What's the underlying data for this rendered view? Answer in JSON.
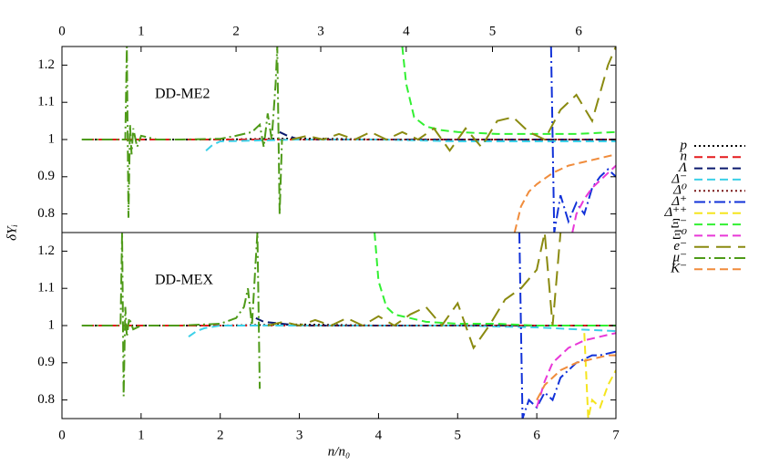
{
  "chart_data": [
    {
      "type": "line",
      "annotation": "DD-ME2",
      "ylabel": "δYᵢ",
      "ylim": [
        0.75,
        1.25
      ],
      "yticks": [
        0.8,
        0.9,
        1,
        1.1,
        1.2
      ],
      "xlim": [
        0,
        7
      ],
      "x2ticks": [
        {
          "value": 0,
          "label": "0"
        },
        {
          "value": 1.0,
          "label": "1"
        },
        {
          "value": 2.2,
          "label": "2"
        },
        {
          "value": 3.27,
          "label": "3"
        },
        {
          "value": 4.35,
          "label": "4"
        },
        {
          "value": 5.44,
          "label": "5"
        },
        {
          "value": 6.53,
          "label": "6"
        }
      ],
      "series": [
        {
          "name": "p",
          "color": "#000000",
          "dash": "dotted",
          "x": [
            0.3,
            1,
            2,
            3,
            4,
            5,
            6,
            7
          ],
          "values": [
            1,
            1,
            1,
            1.003,
            1,
            1,
            1,
            1
          ]
        },
        {
          "name": "n",
          "color": "#e41a1c",
          "dash": "dashed",
          "x": [
            0.3,
            2,
            4,
            6,
            7
          ],
          "values": [
            1,
            1,
            1,
            1,
            1
          ]
        },
        {
          "name": "Λ",
          "color": "#0b1a6e",
          "dash": "dashed",
          "x": [
            2.75,
            2.85,
            3,
            4,
            5,
            6,
            7
          ],
          "values": [
            1.02,
            1.01,
            1,
            1,
            1,
            1,
            1
          ]
        },
        {
          "name": "Δ⁻",
          "color": "#3cd0e8",
          "dash": "dashed",
          "x": [
            1.82,
            1.9,
            2,
            3,
            4,
            5,
            6,
            7
          ],
          "values": [
            0.97,
            0.985,
            0.995,
            1,
            1,
            0.995,
            0.995,
            0.995
          ]
        },
        {
          "name": "Δ⁰",
          "color": "#7a1a1a",
          "dash": "dotted",
          "x": [
            3,
            5,
            7
          ],
          "values": [
            1,
            1,
            1
          ]
        },
        {
          "name": "Δ⁺",
          "color": "#1232d8",
          "dash": "dashdot",
          "x": [
            6.18,
            6.22,
            6.3,
            6.4,
            6.5,
            6.6,
            6.7,
            6.8,
            6.9,
            7
          ],
          "values": [
            1.25,
            0.75,
            0.85,
            0.78,
            0.83,
            0.8,
            0.87,
            0.9,
            0.92,
            0.9
          ]
        },
        {
          "name": "Ξ⁻",
          "color": "#32f032",
          "dash": "dashed",
          "x": [
            4.3,
            4.35,
            4.45,
            4.6,
            4.8,
            5,
            5.5,
            6,
            6.5,
            7
          ],
          "values": [
            1.25,
            1.15,
            1.06,
            1.035,
            1.025,
            1.02,
            1.015,
            1.015,
            1.015,
            1.02
          ]
        },
        {
          "name": "Ξ⁰",
          "color": "#e838d8",
          "dash": "dashed",
          "x": [
            6.45,
            6.5,
            6.6,
            6.7,
            6.8,
            6.9,
            7
          ],
          "values": [
            0.75,
            0.8,
            0.84,
            0.87,
            0.89,
            0.91,
            0.93
          ]
        },
        {
          "name": "e⁻",
          "color": "#8a8a10",
          "dash": "long",
          "x": [
            2.9,
            3.1,
            3.3,
            3.5,
            3.7,
            3.9,
            4.1,
            4.3,
            4.5,
            4.7,
            4.9,
            5.1,
            5.3,
            5.5,
            5.7,
            5.9,
            6.1,
            6.3,
            6.5,
            6.7,
            6.9,
            7
          ],
          "values": [
            1,
            1.01,
            1,
            1.015,
            1,
            1.02,
            1,
            1.02,
            1,
            1.03,
            0.97,
            1.03,
            0.98,
            1.05,
            1.06,
            1.02,
            1.0,
            1.08,
            1.12,
            1.05,
            1.2,
            1.25
          ]
        },
        {
          "name": "μ⁻",
          "color": "#4e9a18",
          "dash": "dashdot",
          "x": [
            0.25,
            0.5,
            0.8,
            0.82,
            0.84,
            0.86,
            0.88,
            0.9,
            0.95,
            1.0,
            1.2,
            1.5,
            2.0,
            2.2,
            2.4,
            2.5,
            2.55,
            2.6,
            2.65,
            2.7,
            2.72,
            2.75,
            2.78
          ],
          "values": [
            1,
            1,
            1,
            1.25,
            0.79,
            1.04,
            0.96,
            1.03,
            0.98,
            1.01,
            1,
            1,
            1.002,
            1.01,
            1.02,
            1.04,
            0.98,
            1.07,
            1.0,
            1.15,
            1.25,
            0.8,
            1.0
          ]
        },
        {
          "name": "K⁻",
          "color": "#f08c3c",
          "dash": "dashed",
          "x": [
            5.72,
            5.8,
            5.9,
            6.0,
            6.2,
            6.4,
            6.6,
            6.8,
            7
          ],
          "values": [
            0.75,
            0.82,
            0.86,
            0.88,
            0.91,
            0.93,
            0.94,
            0.95,
            0.96
          ]
        }
      ]
    },
    {
      "type": "line",
      "annotation": "DD-MEX",
      "xlabel": "n/n₀",
      "ylim": [
        0.75,
        1.25
      ],
      "yticks": [
        0.8,
        0.9,
        1,
        1.1,
        1.2
      ],
      "xlim": [
        0,
        7
      ],
      "xticks": [
        0,
        1,
        2,
        3,
        4,
        5,
        6,
        7
      ],
      "series": [
        {
          "name": "p",
          "color": "#000000",
          "dash": "dotted",
          "x": [
            0.3,
            1,
            2,
            3,
            4,
            5,
            6,
            7
          ],
          "values": [
            1,
            1,
            1,
            1.003,
            1,
            1,
            1,
            1
          ]
        },
        {
          "name": "n",
          "color": "#e41a1c",
          "dash": "dashed",
          "x": [
            0.3,
            2,
            4,
            6,
            7
          ],
          "values": [
            1,
            1,
            1,
            1,
            1
          ]
        },
        {
          "name": "Λ",
          "color": "#0b1a6e",
          "dash": "dashed",
          "x": [
            2.45,
            2.55,
            3,
            4,
            5,
            6,
            7
          ],
          "values": [
            1.02,
            1.01,
            1,
            1,
            1,
            1,
            1
          ]
        },
        {
          "name": "Δ⁻",
          "color": "#3cd0e8",
          "dash": "dashed",
          "x": [
            1.6,
            1.7,
            1.8,
            2,
            3,
            4,
            5,
            6,
            6.5,
            7
          ],
          "values": [
            0.97,
            0.985,
            0.993,
            1,
            1,
            1,
            1,
            0.995,
            0.99,
            0.985
          ]
        },
        {
          "name": "Δ⁰",
          "color": "#7a1a1a",
          "dash": "dotted",
          "x": [
            3,
            5,
            7
          ],
          "values": [
            1,
            1,
            1
          ]
        },
        {
          "name": "Δ⁺",
          "color": "#1232d8",
          "dash": "dashdot",
          "x": [
            5.78,
            5.82,
            5.9,
            6,
            6.1,
            6.2,
            6.3,
            6.4,
            6.5,
            6.6,
            6.7,
            6.8,
            7
          ],
          "values": [
            1.25,
            0.75,
            0.8,
            0.78,
            0.82,
            0.8,
            0.86,
            0.88,
            0.9,
            0.91,
            0.92,
            0.92,
            0.93
          ]
        },
        {
          "name": "Δ⁺⁺",
          "color": "#f5e51e",
          "dash": "dashed",
          "x": [
            6.6,
            6.65,
            6.7,
            6.8,
            6.9,
            7
          ],
          "values": [
            0.98,
            0.75,
            0.8,
            0.78,
            0.84,
            0.88
          ]
        },
        {
          "name": "Ξ⁻",
          "color": "#32f032",
          "dash": "dashed",
          "x": [
            3.95,
            4.0,
            4.1,
            4.2,
            4.4,
            4.6,
            5,
            5.5,
            6,
            6.5,
            7
          ],
          "values": [
            1.25,
            1.12,
            1.05,
            1.03,
            1.02,
            1.01,
            1.005,
            1.005,
            1.0,
            1.0,
            1.0
          ]
        },
        {
          "name": "Ξ⁰",
          "color": "#e838d8",
          "dash": "dashed",
          "x": [
            6.0,
            6.1,
            6.2,
            6.4,
            6.6,
            6.8,
            7
          ],
          "values": [
            0.78,
            0.85,
            0.9,
            0.94,
            0.96,
            0.97,
            0.98
          ]
        },
        {
          "name": "e⁻",
          "color": "#8a8a10",
          "dash": "long",
          "x": [
            2.6,
            2.8,
            3.0,
            3.2,
            3.4,
            3.6,
            3.8,
            4.0,
            4.2,
            4.4,
            4.6,
            4.8,
            5.0,
            5.2,
            5.4,
            5.6,
            5.8,
            6.0,
            6.1,
            6.2,
            6.3
          ],
          "values": [
            1,
            1.01,
            1,
            1.015,
            1,
            1.02,
            1,
            1.025,
            1,
            1.03,
            1.05,
            1.0,
            1.06,
            0.94,
            1.0,
            1.07,
            1.1,
            1.15,
            1.25,
            1.0,
            1.25
          ]
        },
        {
          "name": "μ⁻",
          "color": "#4e9a18",
          "dash": "dashdot",
          "x": [
            0.25,
            0.6,
            0.74,
            0.76,
            0.78,
            0.8,
            0.82,
            0.85,
            0.9,
            1.0,
            1.5,
            2.0,
            2.2,
            2.3,
            2.35,
            2.4,
            2.45,
            2.47,
            2.5
          ],
          "values": [
            1,
            1,
            1,
            1.25,
            0.81,
            1.05,
            0.97,
            1.02,
            0.99,
            1.0,
            1,
            1.005,
            1.02,
            1.05,
            1.1,
            1.0,
            1.18,
            1.25,
            0.83
          ]
        },
        {
          "name": "K⁻",
          "color": "#f08c3c",
          "dash": "dashed",
          "x": [
            6,
            6.1,
            6.2,
            6.3,
            6.5,
            6.7,
            6.9,
            7
          ],
          "values": [
            0.8,
            0.84,
            0.86,
            0.88,
            0.9,
            0.91,
            0.92,
            0.92
          ]
        }
      ]
    }
  ]
}
